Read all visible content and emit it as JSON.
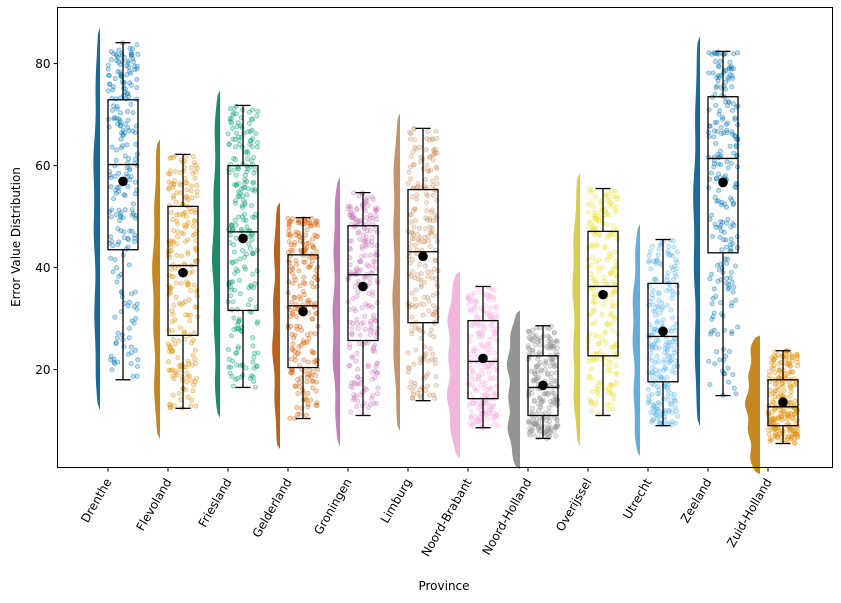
{
  "chart_data": {
    "type": "raincloud",
    "title": "",
    "xlabel": "Province",
    "ylabel": "Error Value Distribution",
    "ylim": [
      0.8,
      91
    ],
    "yticks": [
      20,
      40,
      60,
      80
    ],
    "grid": false,
    "legend": "none",
    "categories": [
      "Drenthe",
      "Flevoland",
      "Friesland",
      "Gelderland",
      "Groningen",
      "Limburg",
      "Noord-Brabant",
      "Noord-Holland",
      "Overijssel",
      "Utrecht",
      "Zeeland",
      "Zuid-Holland"
    ],
    "series": [
      {
        "name": "Drenthe",
        "whisker_low": 18.0,
        "q1": 43.5,
        "median": 60.2,
        "q3": 72.9,
        "whisker_high": 84.1,
        "mean": 56.9,
        "color": "#0173b2",
        "violin_color": "#1b6a98"
      },
      {
        "name": "Flevoland",
        "whisker_low": 12.4,
        "q1": 26.7,
        "median": 40.4,
        "q3": 52.0,
        "whisker_high": 62.2,
        "mean": 39.0,
        "color": "#de8f05",
        "violin_color": "#c4881f"
      },
      {
        "name": "Friesland",
        "whisker_low": 16.5,
        "q1": 31.6,
        "median": 47.0,
        "q3": 60.0,
        "whisker_high": 71.8,
        "mean": 45.7,
        "color": "#029e73",
        "violin_color": "#1b8a68"
      },
      {
        "name": "Gelderland",
        "whisker_low": 10.4,
        "q1": 20.4,
        "median": 32.5,
        "q3": 42.5,
        "whisker_high": 49.8,
        "mean": 31.4,
        "color": "#d55e00",
        "violin_color": "#bc621c"
      },
      {
        "name": "Groningen",
        "whisker_low": 11.0,
        "q1": 25.7,
        "median": 38.6,
        "q3": 48.2,
        "whisker_high": 54.7,
        "mean": 36.3,
        "color": "#cc78bc",
        "violin_color": "#c27fb6"
      },
      {
        "name": "Limburg",
        "whisker_low": 13.9,
        "q1": 29.2,
        "median": 43.1,
        "q3": 55.3,
        "whisker_high": 67.3,
        "mean": 42.2,
        "color": "#ca9161",
        "violin_color": "#c39469"
      },
      {
        "name": "Noord-Brabant",
        "whisker_low": 8.6,
        "q1": 14.3,
        "median": 21.6,
        "q3": 29.6,
        "whisker_high": 36.3,
        "mean": 22.2,
        "color": "#fbafe4",
        "violin_color": "#f2b6dd"
      },
      {
        "name": "Noord-Holland",
        "whisker_low": 6.5,
        "q1": 11.0,
        "median": 16.5,
        "q3": 22.7,
        "whisker_high": 28.6,
        "mean": 16.9,
        "color": "#949494",
        "violin_color": "#949494"
      },
      {
        "name": "Overijssel",
        "whisker_low": 11.0,
        "q1": 22.7,
        "median": 36.3,
        "q3": 47.1,
        "whisker_high": 55.5,
        "mean": 34.7,
        "color": "#ece133",
        "violin_color": "#d9cd4f"
      },
      {
        "name": "Utrecht",
        "whisker_low": 9.0,
        "q1": 17.6,
        "median": 26.5,
        "q3": 36.9,
        "whisker_high": 45.5,
        "mean": 27.5,
        "color": "#56b4e9",
        "violin_color": "#63aedb"
      },
      {
        "name": "Zeeland",
        "whisker_low": 14.9,
        "q1": 42.9,
        "median": 61.4,
        "q3": 73.5,
        "whisker_high": 82.4,
        "mean": 56.7,
        "color": "#0173b2",
        "violin_color": "#1b6a98"
      },
      {
        "name": "Zuid-Holland",
        "whisker_low": 5.5,
        "q1": 9.0,
        "median": 12.7,
        "q3": 18.0,
        "whisker_high": 23.7,
        "mean": 13.6,
        "color": "#de8f05",
        "violin_color": "#c4881f"
      }
    ]
  }
}
